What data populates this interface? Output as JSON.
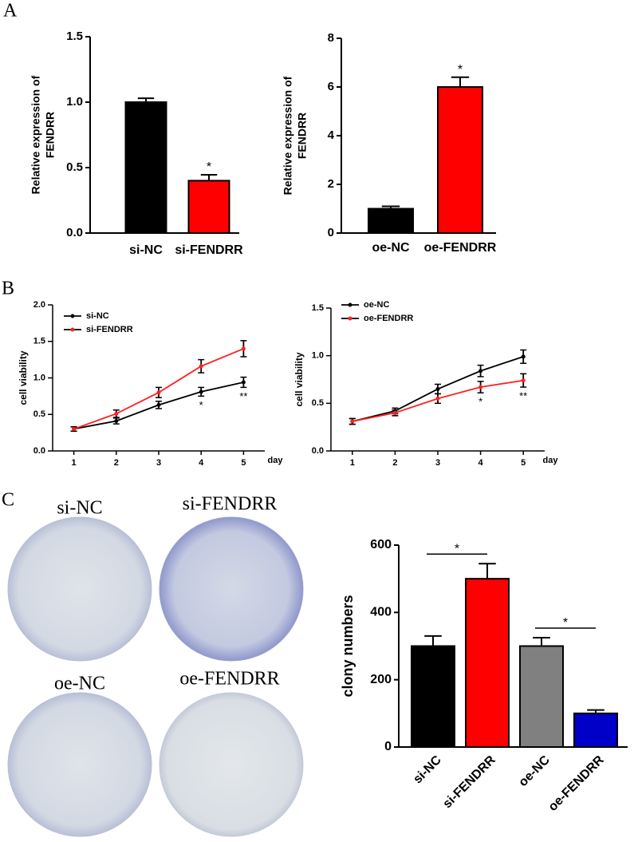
{
  "panel_labels": [
    "A",
    "B",
    "C"
  ],
  "plates": [
    "si-NC",
    "si-FENDRR",
    "oe-NC",
    "oe-FENDRR"
  ],
  "chart_data": [
    {
      "type": "bar",
      "categories": [
        "si-NC",
        "si-FENDRR"
      ],
      "values": [
        1.0,
        0.4
      ],
      "errors": [
        0.03,
        0.045
      ],
      "colors": [
        "#000000",
        "#ff0000"
      ],
      "significance": [
        null,
        "*"
      ],
      "ylabel": [
        "Relative expression of",
        "FENDRR"
      ],
      "ylim": [
        0,
        1.5
      ],
      "yticks": [
        {
          "value": 0,
          "label": "0.0"
        },
        0.5,
        {
          "value": 1,
          "label": "1.0"
        },
        1.5
      ]
    },
    {
      "type": "bar",
      "categories": [
        "oe-NC",
        "oe-FENDRR"
      ],
      "values": [
        1.0,
        6.0
      ],
      "errors": [
        0.1,
        0.4
      ],
      "colors": [
        "#000000",
        "#ff0000"
      ],
      "significance": [
        null,
        "*"
      ],
      "ylabel": [
        "Relative expression of",
        "FENDRR"
      ],
      "ylim": [
        0,
        8
      ],
      "yticks": [
        0,
        2,
        4,
        6,
        8
      ]
    },
    {
      "type": "line",
      "x": [
        1,
        2,
        3,
        4,
        5
      ],
      "xlim": [
        0.5,
        5.5
      ],
      "xticks": [
        1,
        2,
        3,
        4,
        5
      ],
      "xlabel": "day",
      "ylabel": [
        "cell viability"
      ],
      "ylim": [
        0,
        2
      ],
      "yticks": [
        {
          "value": 0,
          "label": "0.0"
        },
        0.5,
        {
          "value": 1,
          "label": "1.0"
        },
        1.5,
        {
          "value": 2,
          "label": "2.0"
        }
      ],
      "legend": "upper left",
      "significance": [
        null,
        null,
        null,
        "*",
        "**"
      ],
      "series": [
        {
          "name": "si-NC",
          "color": "#000000",
          "values": [
            0.3,
            0.41,
            0.63,
            0.81,
            0.94
          ],
          "errors": [
            0.03,
            0.04,
            0.05,
            0.06,
            0.07
          ]
        },
        {
          "name": "si-FENDRR",
          "color": "#ff2020",
          "values": [
            0.3,
            0.51,
            0.8,
            1.16,
            1.4
          ],
          "errors": [
            0.03,
            0.05,
            0.07,
            0.09,
            0.11
          ]
        }
      ]
    },
    {
      "type": "line",
      "x": [
        1,
        2,
        3,
        4,
        5
      ],
      "xlim": [
        0.5,
        5.5
      ],
      "xticks": [
        1,
        2,
        3,
        4,
        5
      ],
      "xlabel": "day",
      "ylabel": [
        "cell viability"
      ],
      "ylim": [
        0,
        1.5
      ],
      "yticks": [
        {
          "value": 0,
          "label": "0.0"
        },
        0.5,
        {
          "value": 1,
          "label": "1.0"
        },
        1.5
      ],
      "legend": "upper left",
      "significance": [
        null,
        null,
        null,
        "*",
        "**"
      ],
      "series": [
        {
          "name": "oe-NC",
          "color": "#000000",
          "values": [
            0.31,
            0.42,
            0.65,
            0.84,
            0.99
          ],
          "errors": [
            0.03,
            0.03,
            0.05,
            0.06,
            0.07
          ]
        },
        {
          "name": "oe-FENDRR",
          "color": "#ff2020",
          "values": [
            0.31,
            0.4,
            0.55,
            0.67,
            0.74
          ],
          "errors": [
            0.03,
            0.03,
            0.05,
            0.06,
            0.07
          ]
        }
      ]
    },
    {
      "type": "bar",
      "categories": [
        "si-NC",
        "si-FENDRR",
        "oe-NC",
        "oe-FENDRR"
      ],
      "values": [
        300,
        500,
        300,
        100
      ],
      "errors": [
        30,
        45,
        25,
        10
      ],
      "colors": [
        "#000000",
        "#ff0000",
        "#808080",
        "#0000c8"
      ],
      "significance": [
        null,
        "*",
        null,
        "*"
      ],
      "significance_style": "bracket",
      "ylabel": [
        "clony numbers"
      ],
      "ylim": [
        0,
        600
      ],
      "yticks": [
        0,
        200,
        400,
        600
      ]
    }
  ]
}
